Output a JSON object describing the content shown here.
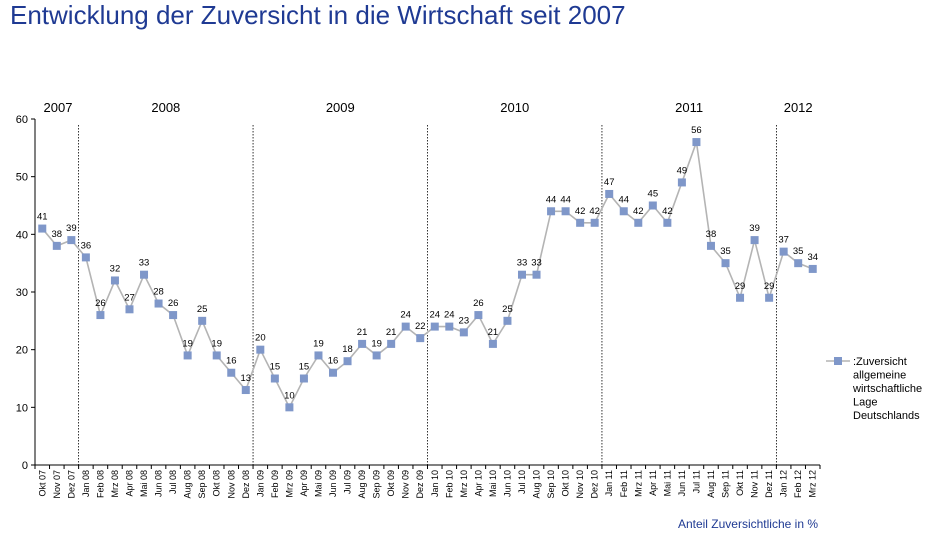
{
  "title": "Entwicklung der Zuversicht in die Wirtschaft seit 2007",
  "chart_data": {
    "type": "line",
    "title": "Entwicklung der Zuversicht in die Wirtschaft seit 2007",
    "ylim": [
      0,
      60
    ],
    "yticks": [
      "0",
      "10",
      "20",
      "30",
      "40",
      "50",
      "60"
    ],
    "grid": false,
    "legend": "right",
    "categories": [
      "Okt 07",
      "Nov 07",
      "Dez 07",
      "Jan 08",
      "Feb 08",
      "Mrz 08",
      "Apr 08",
      "Mai 08",
      "Jun 08",
      "Jul 08",
      "Aug 08",
      "Sep 08",
      "Okt 08",
      "Nov 08",
      "Dez 08",
      "Jan 09",
      "Feb 09",
      "Mrz 09",
      "Apr 09",
      "Mai 09",
      "Jun 09",
      "Jul 09",
      "Aug 09",
      "Sep 09",
      "Okt 09",
      "Nov 09",
      "Dez 09",
      "Jan 10",
      "Feb 10",
      "Mrz 10",
      "Apr 10",
      "Mai 10",
      "Jun 10",
      "Jul 10",
      "Aug 10",
      "Sep 10",
      "Okt 10",
      "Nov 10",
      "Dez 10",
      "Jan 11",
      "Feb 11",
      "Mrz 11",
      "Apr 11",
      "Mai 11",
      "Jun 11",
      "Jul 11",
      "Aug 11",
      "Sep 11",
      "Okt 11",
      "Nov 11",
      "Dez 11",
      "Jan 12",
      "Feb 12",
      "Mrz 12"
    ],
    "series": [
      {
        "name": ":Zuversicht allgemeine wirtschaftliche Lage Deutschlands",
        "color": "#7f97c9",
        "values": [
          41,
          38,
          39,
          36,
          26,
          32,
          27,
          33,
          28,
          26,
          19,
          25,
          19,
          16,
          13,
          20,
          15,
          10,
          15,
          19,
          16,
          18,
          21,
          19,
          21,
          24,
          22,
          24,
          24,
          23,
          26,
          21,
          25,
          33,
          33,
          44,
          44,
          42,
          42,
          47,
          44,
          42,
          45,
          42,
          49,
          56,
          38,
          35,
          29,
          39,
          29,
          37,
          35,
          34
        ]
      }
    ],
    "years": [
      {
        "label": "2007",
        "start": 0,
        "end": 2
      },
      {
        "label": "2008",
        "start": 3,
        "end": 14
      },
      {
        "label": "2009",
        "start": 15,
        "end": 26
      },
      {
        "label": "2010",
        "start": 27,
        "end": 38
      },
      {
        "label": "2011",
        "start": 39,
        "end": 50
      },
      {
        "label": "2012",
        "start": 51,
        "end": 53
      }
    ],
    "footnote": "Anteil Zuversichtliche in %"
  }
}
